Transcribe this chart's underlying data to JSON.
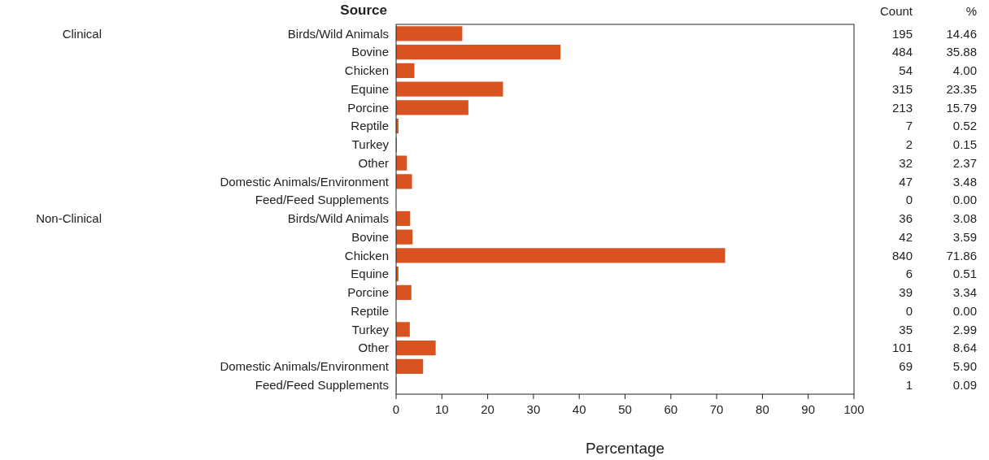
{
  "chart_data": {
    "type": "bar",
    "orientation": "horizontal",
    "ylabel": "Source",
    "xlabel": "Percentage",
    "categories": [
      "Birds/Wild Animals",
      "Bovine",
      "Chicken",
      "Equine",
      "Porcine",
      "Reptile",
      "Turkey",
      "Other",
      "Domestic Animals/Environment",
      "Feed/Feed Supplements",
      "Birds/Wild Animals",
      "Bovine",
      "Chicken",
      "Equine",
      "Porcine",
      "Reptile",
      "Turkey",
      "Other",
      "Domestic Animals/Environment",
      "Feed/Feed Supplements"
    ],
    "values": [
      14.46,
      35.88,
      4.0,
      23.35,
      15.79,
      0.52,
      0.15,
      2.37,
      3.48,
      0.0,
      3.08,
      3.59,
      71.86,
      0.51,
      3.34,
      0.0,
      2.99,
      8.64,
      5.9,
      0.09
    ],
    "value_labels": [
      "14.46",
      "35.88",
      "4.00",
      "23.35",
      "15.79",
      "0.52",
      "0.15",
      "2.37",
      "3.48",
      "0.00",
      "3.08",
      "3.59",
      "71.86",
      "0.51",
      "3.34",
      "0.00",
      "2.99",
      "8.64",
      "5.90",
      "0.09"
    ],
    "color": "#d95321",
    "xlim": [
      0,
      100
    ],
    "xticks": [
      0,
      10,
      20,
      30,
      40,
      50,
      60,
      70,
      80,
      90,
      100
    ],
    "annotations": [
      "Clinical",
      "Non-Clinical",
      "Count",
      "%",
      "195",
      "484",
      "54",
      "315",
      "213",
      "7",
      "2",
      "32",
      "47",
      "0",
      "36",
      "42",
      "840",
      "6",
      "39",
      "0",
      "35",
      "101",
      "69",
      "1"
    ]
  }
}
